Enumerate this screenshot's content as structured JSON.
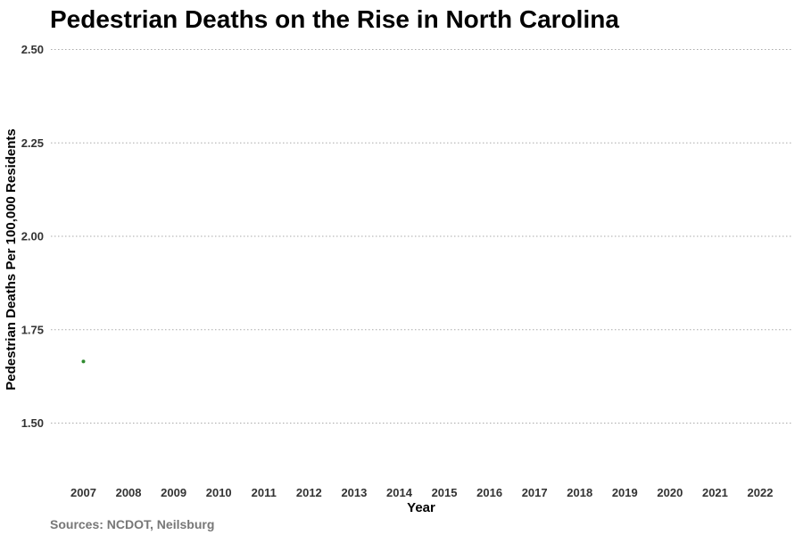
{
  "chart_data": {
    "type": "scatter",
    "title": "Pedestrian Deaths on the Rise in North Carolina",
    "xlabel": "Year",
    "ylabel": "Pedestrian Deaths Per 100,000 Residents",
    "caption": "Sources: NCDOT, Neilsburg",
    "x_ticks": [
      "2007",
      "2008",
      "2009",
      "2010",
      "2011",
      "2012",
      "2013",
      "2014",
      "2015",
      "2016",
      "2017",
      "2018",
      "2019",
      "2020",
      "2021",
      "2022"
    ],
    "y_ticks": [
      "1.50",
      "1.75",
      "2.00",
      "2.25",
      "2.50"
    ],
    "xlim": [
      2007,
      2022
    ],
    "ylim": [
      1.5,
      2.5
    ],
    "grid": "horizontal dotted",
    "series": [
      {
        "color": "#2e8b2e",
        "points": [
          {
            "x": 2007,
            "y": 1.665
          }
        ]
      }
    ]
  }
}
